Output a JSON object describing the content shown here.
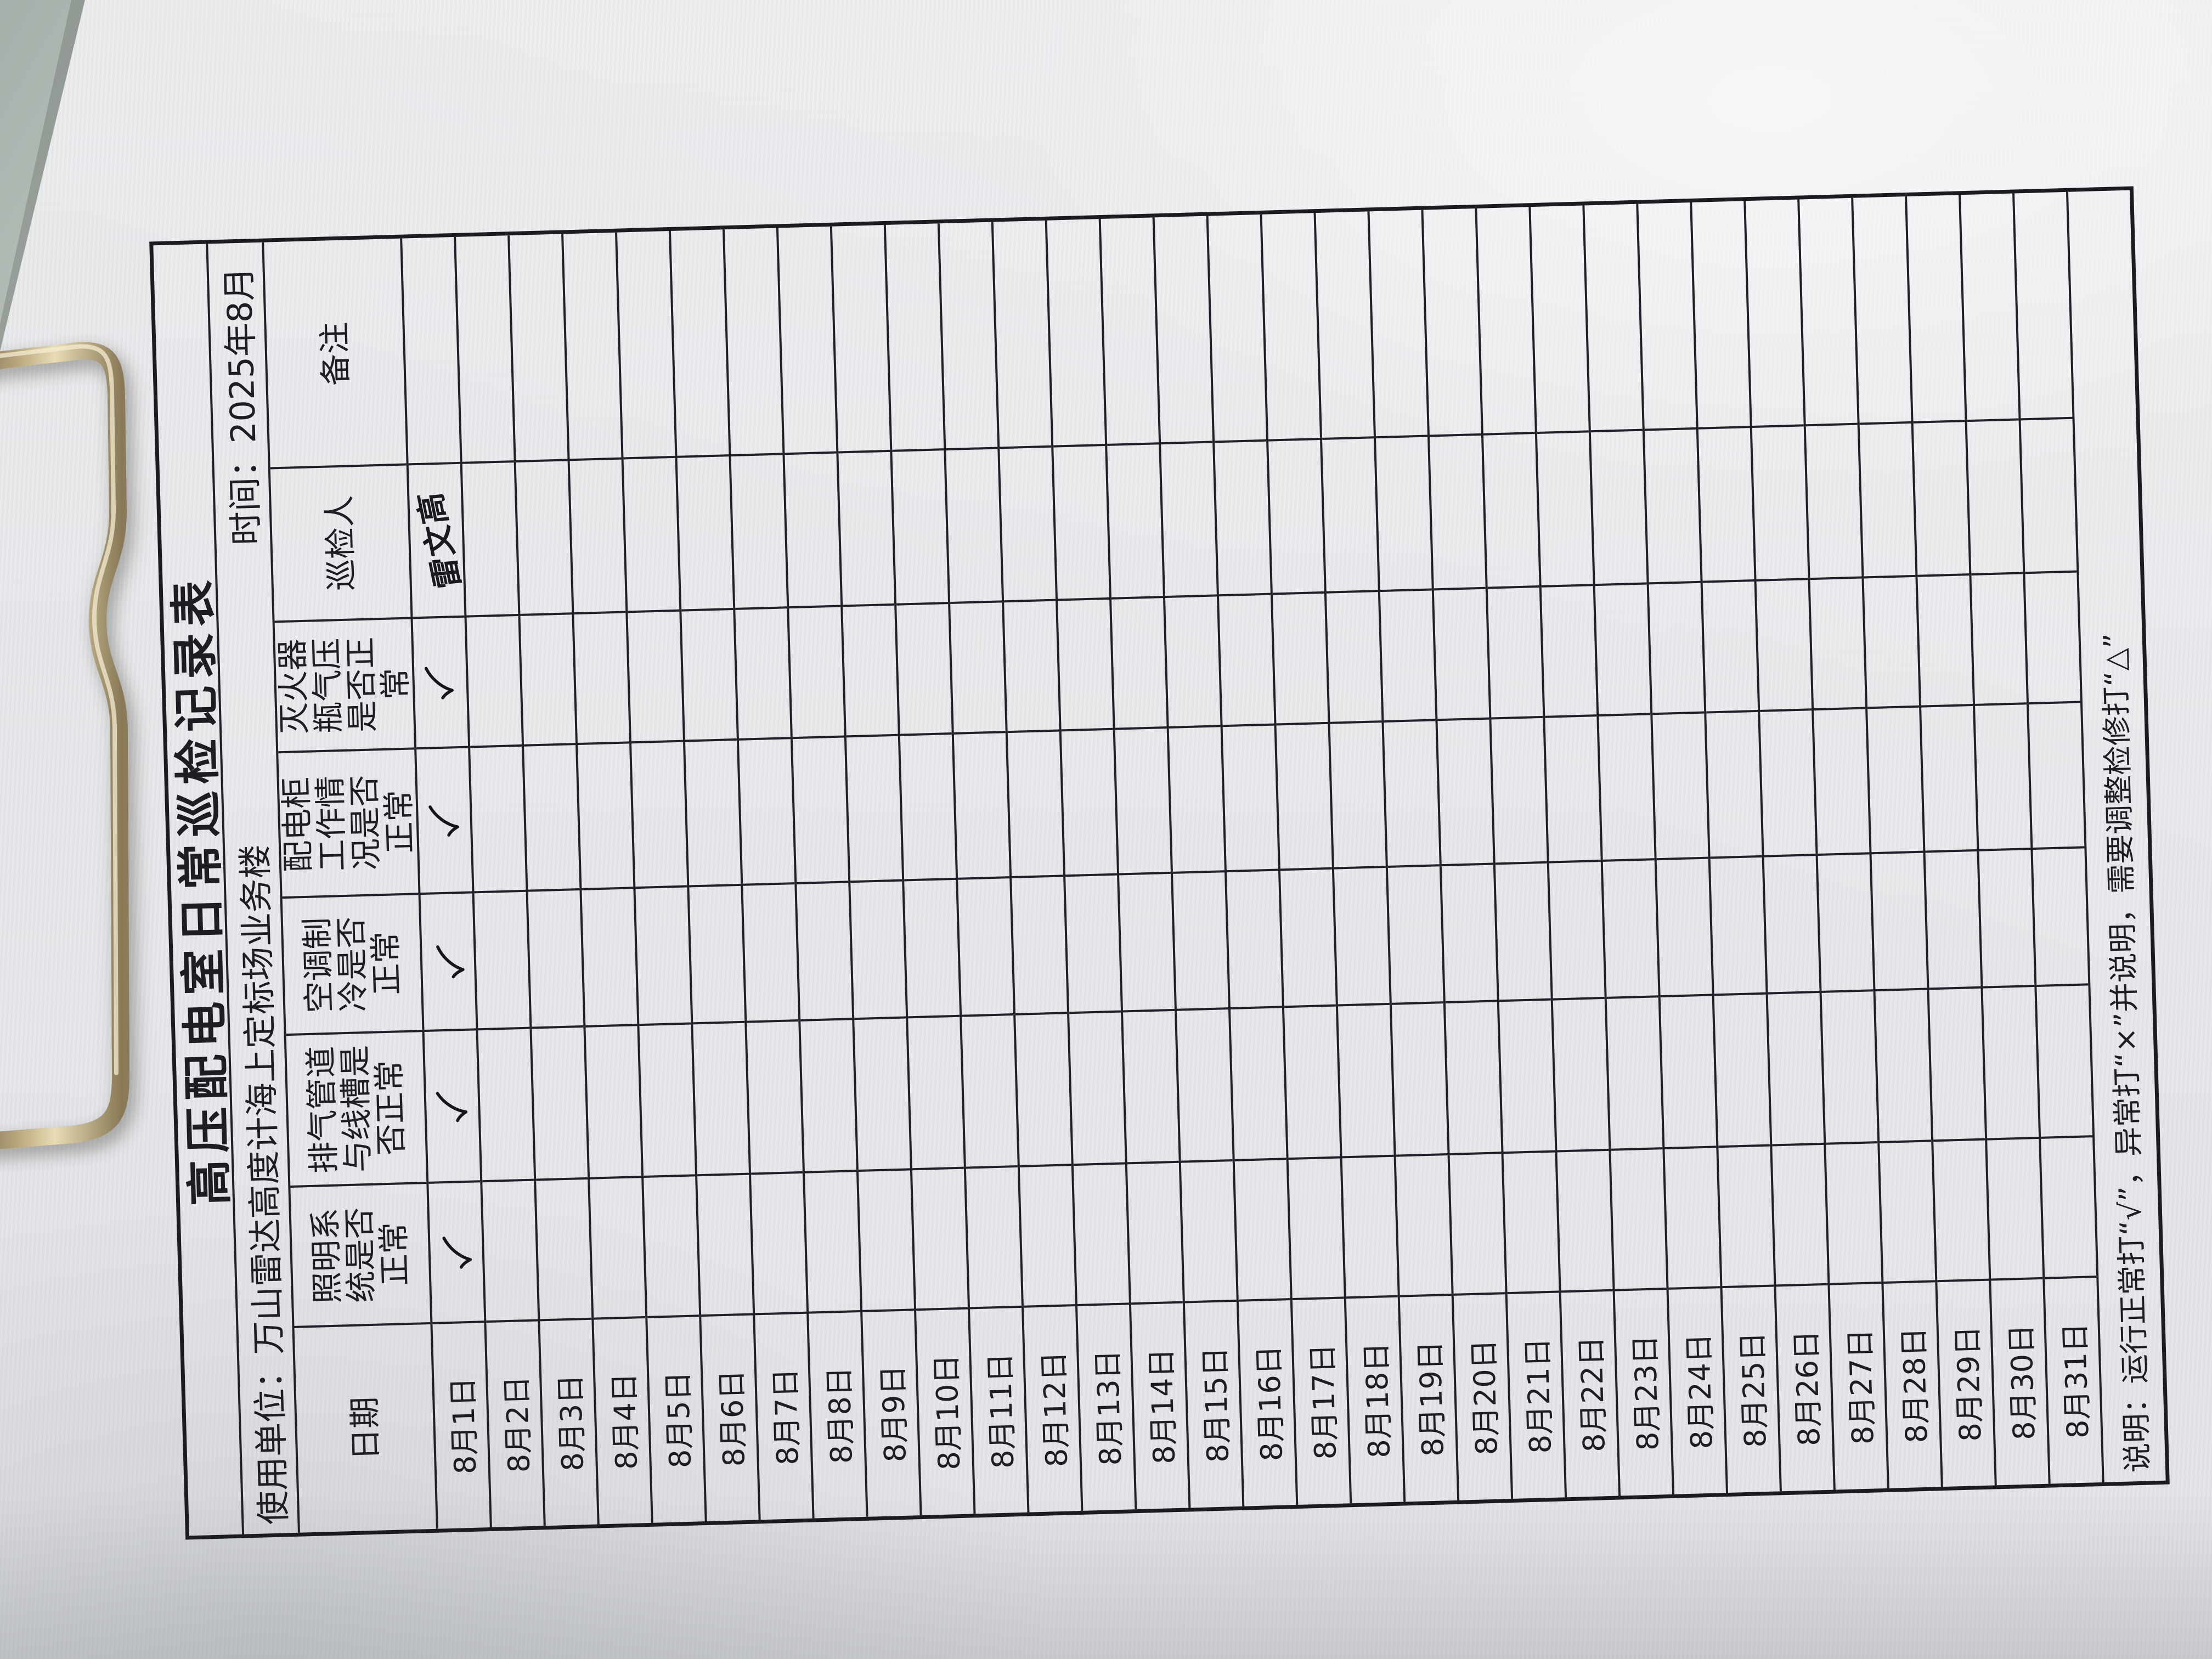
{
  "photo": {
    "desk_color": "#b6beb8",
    "paper_color": "#e9eaec",
    "clip_metal_color": "#c9b98c",
    "table_line_color": "#20202a"
  },
  "form": {
    "title": "高压配电室日常巡检记录表",
    "unit_label": "使用单位：",
    "unit_value": "万山雷达高度计海上定标场业务楼",
    "time_label": "时间：",
    "time_value": "2025年8月",
    "columns": [
      "日期",
      "照明系统是否正常",
      "排气管道与线槽是否正常",
      "空调制冷是否正常",
      "配电柜工作情况是否正常",
      "灭火器瓶气压是否正常",
      "巡检人",
      "备注"
    ],
    "note": "说明：运行正常打“√”，异常打“×”并说明，需要调整检修打“△”",
    "rows": [
      {
        "date": "8月1日",
        "checks": [
          "√",
          "√",
          "√",
          "√",
          "√"
        ],
        "inspector": "雷文高",
        "remark": ""
      },
      {
        "date": "8月2日",
        "checks": [
          "",
          "",
          "",
          "",
          ""
        ],
        "inspector": "",
        "remark": ""
      },
      {
        "date": "8月3日",
        "checks": [
          "",
          "",
          "",
          "",
          ""
        ],
        "inspector": "",
        "remark": ""
      },
      {
        "date": "8月4日",
        "checks": [
          "",
          "",
          "",
          "",
          ""
        ],
        "inspector": "",
        "remark": ""
      },
      {
        "date": "8月5日",
        "checks": [
          "",
          "",
          "",
          "",
          ""
        ],
        "inspector": "",
        "remark": ""
      },
      {
        "date": "8月6日",
        "checks": [
          "",
          "",
          "",
          "",
          ""
        ],
        "inspector": "",
        "remark": ""
      },
      {
        "date": "8月7日",
        "checks": [
          "",
          "",
          "",
          "",
          ""
        ],
        "inspector": "",
        "remark": ""
      },
      {
        "date": "8月8日",
        "checks": [
          "",
          "",
          "",
          "",
          ""
        ],
        "inspector": "",
        "remark": ""
      },
      {
        "date": "8月9日",
        "checks": [
          "",
          "",
          "",
          "",
          ""
        ],
        "inspector": "",
        "remark": ""
      },
      {
        "date": "8月10日",
        "checks": [
          "",
          "",
          "",
          "",
          ""
        ],
        "inspector": "",
        "remark": ""
      },
      {
        "date": "8月11日",
        "checks": [
          "",
          "",
          "",
          "",
          ""
        ],
        "inspector": "",
        "remark": ""
      },
      {
        "date": "8月12日",
        "checks": [
          "",
          "",
          "",
          "",
          ""
        ],
        "inspector": "",
        "remark": ""
      },
      {
        "date": "8月13日",
        "checks": [
          "",
          "",
          "",
          "",
          ""
        ],
        "inspector": "",
        "remark": ""
      },
      {
        "date": "8月14日",
        "checks": [
          "",
          "",
          "",
          "",
          ""
        ],
        "inspector": "",
        "remark": ""
      },
      {
        "date": "8月15日",
        "checks": [
          "",
          "",
          "",
          "",
          ""
        ],
        "inspector": "",
        "remark": ""
      },
      {
        "date": "8月16日",
        "checks": [
          "",
          "",
          "",
          "",
          ""
        ],
        "inspector": "",
        "remark": ""
      },
      {
        "date": "8月17日",
        "checks": [
          "",
          "",
          "",
          "",
          ""
        ],
        "inspector": "",
        "remark": ""
      },
      {
        "date": "8月18日",
        "checks": [
          "",
          "",
          "",
          "",
          ""
        ],
        "inspector": "",
        "remark": ""
      },
      {
        "date": "8月19日",
        "checks": [
          "",
          "",
          "",
          "",
          ""
        ],
        "inspector": "",
        "remark": ""
      },
      {
        "date": "8月20日",
        "checks": [
          "",
          "",
          "",
          "",
          ""
        ],
        "inspector": "",
        "remark": ""
      },
      {
        "date": "8月21日",
        "checks": [
          "",
          "",
          "",
          "",
          ""
        ],
        "inspector": "",
        "remark": ""
      },
      {
        "date": "8月22日",
        "checks": [
          "",
          "",
          "",
          "",
          ""
        ],
        "inspector": "",
        "remark": ""
      },
      {
        "date": "8月23日",
        "checks": [
          "",
          "",
          "",
          "",
          ""
        ],
        "inspector": "",
        "remark": ""
      },
      {
        "date": "8月24日",
        "checks": [
          "",
          "",
          "",
          "",
          ""
        ],
        "inspector": "",
        "remark": ""
      },
      {
        "date": "8月25日",
        "checks": [
          "",
          "",
          "",
          "",
          ""
        ],
        "inspector": "",
        "remark": ""
      },
      {
        "date": "8月26日",
        "checks": [
          "",
          "",
          "",
          "",
          ""
        ],
        "inspector": "",
        "remark": ""
      },
      {
        "date": "8月27日",
        "checks": [
          "",
          "",
          "",
          "",
          ""
        ],
        "inspector": "",
        "remark": ""
      },
      {
        "date": "8月28日",
        "checks": [
          "",
          "",
          "",
          "",
          ""
        ],
        "inspector": "",
        "remark": ""
      },
      {
        "date": "8月29日",
        "checks": [
          "",
          "",
          "",
          "",
          ""
        ],
        "inspector": "",
        "remark": ""
      },
      {
        "date": "8月30日",
        "checks": [
          "",
          "",
          "",
          "",
          ""
        ],
        "inspector": "",
        "remark": ""
      },
      {
        "date": "8月31日",
        "checks": [
          "",
          "",
          "",
          "",
          ""
        ],
        "inspector": "",
        "remark": ""
      }
    ]
  }
}
